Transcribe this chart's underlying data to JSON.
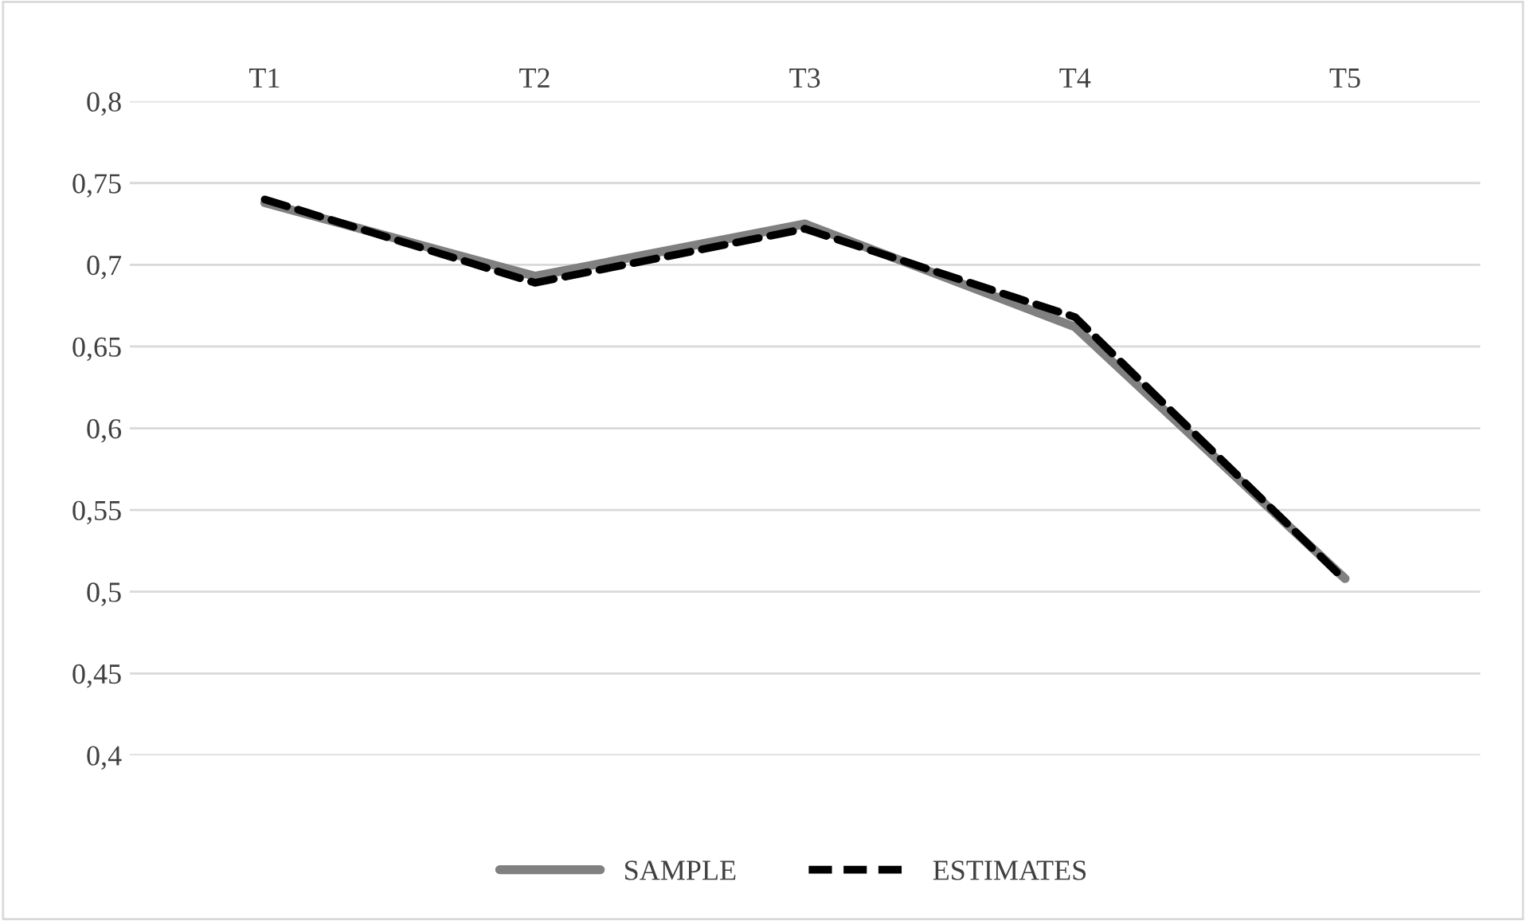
{
  "chart_data": {
    "type": "line",
    "categories": [
      "T1",
      "T2",
      "T3",
      "T4",
      "T5"
    ],
    "series": [
      {
        "name": "SAMPLE",
        "color": "#808080",
        "line_style": "solid",
        "values": [
          0.738,
          0.693,
          0.725,
          0.662,
          0.508
        ]
      },
      {
        "name": "ESTIMATES",
        "color": "#000000",
        "line_style": "dashed",
        "values": [
          0.74,
          0.689,
          0.722,
          0.668,
          0.507
        ]
      }
    ],
    "ylim": [
      0.4,
      0.8
    ],
    "yticks": [
      {
        "value": 0.4,
        "label": "0,4"
      },
      {
        "value": 0.45,
        "label": "0,45"
      },
      {
        "value": 0.5,
        "label": "0,5"
      },
      {
        "value": 0.55,
        "label": "0,55"
      },
      {
        "value": 0.6,
        "label": "0,6"
      },
      {
        "value": 0.65,
        "label": "0,65"
      },
      {
        "value": 0.7,
        "label": "0,7"
      },
      {
        "value": 0.75,
        "label": "0,75"
      },
      {
        "value": 0.8,
        "label": "0,8"
      }
    ],
    "grid": "y",
    "legend": "bottom",
    "marker": "none"
  }
}
